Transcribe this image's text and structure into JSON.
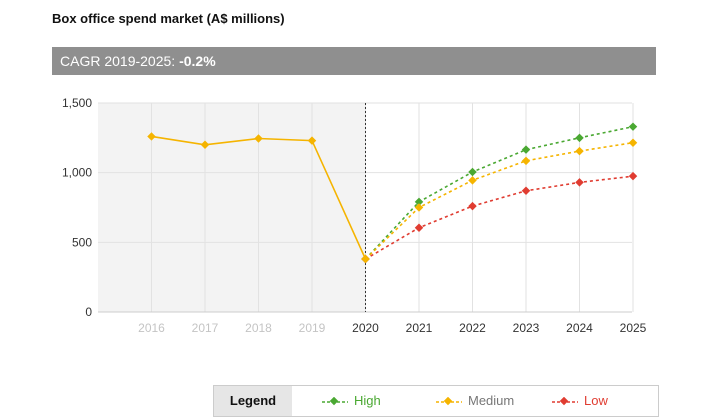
{
  "title": "Box office spend market (A$ millions)",
  "cagr": {
    "label": "CAGR 2019-2025: ",
    "value": "-0.2%"
  },
  "legend": {
    "title": "Legend",
    "items": [
      {
        "name": "High",
        "color": "#4aa832"
      },
      {
        "name": "Medium",
        "color": "#f5b400"
      },
      {
        "name": "Low",
        "color": "#e03c31"
      }
    ]
  },
  "chart_data": {
    "type": "line",
    "x": [
      "2016",
      "2017",
      "2018",
      "2019",
      "2020",
      "2021",
      "2022",
      "2023",
      "2024",
      "2025"
    ],
    "historical": {
      "color": "#f5b400",
      "values": [
        1260,
        1200,
        1245,
        1230,
        380
      ]
    },
    "series": [
      {
        "name": "High",
        "color": "#4aa832",
        "values": [
          null,
          null,
          null,
          null,
          380,
          790,
          1005,
          1165,
          1250,
          1330
        ]
      },
      {
        "name": "Medium",
        "color": "#f5b400",
        "values": [
          null,
          null,
          null,
          null,
          380,
          750,
          945,
          1085,
          1155,
          1215
        ]
      },
      {
        "name": "Low",
        "color": "#e03c31",
        "values": [
          null,
          null,
          null,
          null,
          380,
          605,
          760,
          870,
          930,
          975
        ]
      }
    ],
    "ylim": [
      0,
      1500
    ],
    "yticks": [
      "0",
      "500",
      "1,000",
      "1,500"
    ],
    "ytick_values": [
      0,
      500,
      1000,
      1500
    ],
    "xlabel": "",
    "ylabel": "",
    "grid": true,
    "historical_shaded": true,
    "divider_at": "2020",
    "legend_position": "bottom"
  }
}
